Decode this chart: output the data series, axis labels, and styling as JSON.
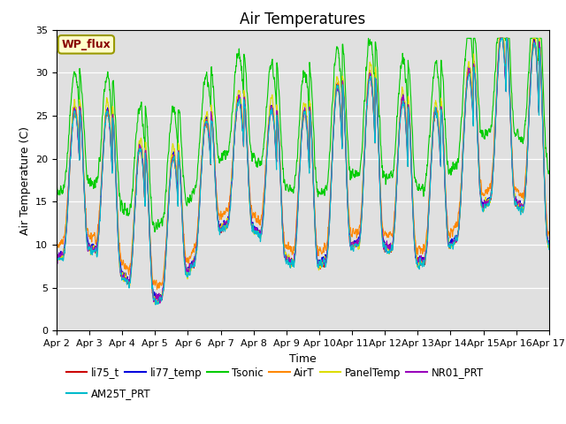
{
  "title": "Air Temperatures",
  "xlabel": "Time",
  "ylabel": "Air Temperature (C)",
  "ylim": [
    0,
    35
  ],
  "x_tick_labels": [
    "Apr 2",
    "Apr 3",
    "Apr 4",
    "Apr 5",
    "Apr 6",
    "Apr 7",
    "Apr 8",
    "Apr 9",
    "Apr 10",
    "Apr 11",
    "Apr 12",
    "Apr 13",
    "Apr 14",
    "Apr 15",
    "Apr 16",
    "Apr 17"
  ],
  "series_colors": {
    "li75_t": "#cc0000",
    "li77_temp": "#0000dd",
    "Tsonic": "#00cc00",
    "AirT": "#ff8800",
    "PanelTemp": "#dddd00",
    "NR01_PRT": "#9900bb",
    "AM25T_PRT": "#00bbcc"
  },
  "wp_flux_label": "WP_flux",
  "wp_flux_text_color": "#880000",
  "wp_flux_bg_color": "#ffffcc",
  "wp_flux_border_color": "#999900",
  "bg_color": "#e0e0e0",
  "title_fontsize": 12,
  "label_fontsize": 9,
  "tick_fontsize": 8,
  "legend_fontsize": 8.5
}
